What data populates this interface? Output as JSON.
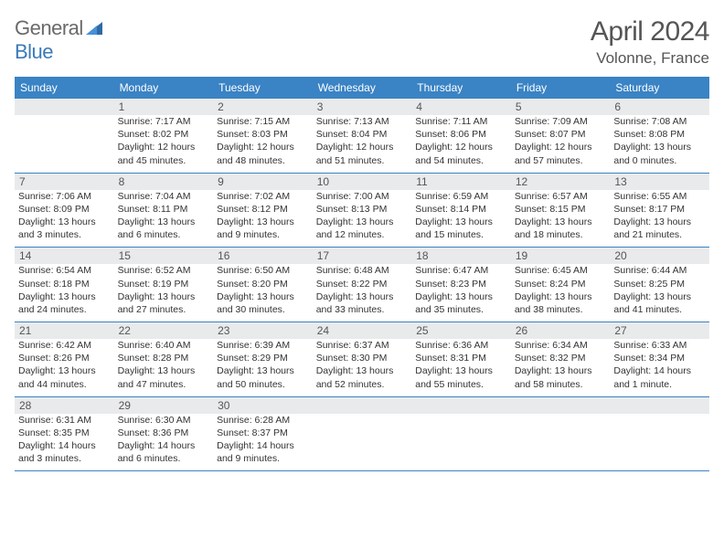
{
  "logo": {
    "general": "General",
    "blue": "Blue"
  },
  "header": {
    "month_title": "April 2024",
    "location": "Volonne, France"
  },
  "colors": {
    "header_bg": "#3a83c4",
    "header_text": "#ffffff",
    "daynum_bg": "#e9eaeb",
    "row_border": "#3a83c4",
    "logo_blue": "#3a7ab8"
  },
  "day_names": [
    "Sunday",
    "Monday",
    "Tuesday",
    "Wednesday",
    "Thursday",
    "Friday",
    "Saturday"
  ],
  "weeks": [
    [
      {
        "n": "",
        "sr": "",
        "ss": "",
        "dl": ""
      },
      {
        "n": "1",
        "sr": "Sunrise: 7:17 AM",
        "ss": "Sunset: 8:02 PM",
        "dl": "Daylight: 12 hours and 45 minutes."
      },
      {
        "n": "2",
        "sr": "Sunrise: 7:15 AM",
        "ss": "Sunset: 8:03 PM",
        "dl": "Daylight: 12 hours and 48 minutes."
      },
      {
        "n": "3",
        "sr": "Sunrise: 7:13 AM",
        "ss": "Sunset: 8:04 PM",
        "dl": "Daylight: 12 hours and 51 minutes."
      },
      {
        "n": "4",
        "sr": "Sunrise: 7:11 AM",
        "ss": "Sunset: 8:06 PM",
        "dl": "Daylight: 12 hours and 54 minutes."
      },
      {
        "n": "5",
        "sr": "Sunrise: 7:09 AM",
        "ss": "Sunset: 8:07 PM",
        "dl": "Daylight: 12 hours and 57 minutes."
      },
      {
        "n": "6",
        "sr": "Sunrise: 7:08 AM",
        "ss": "Sunset: 8:08 PM",
        "dl": "Daylight: 13 hours and 0 minutes."
      }
    ],
    [
      {
        "n": "7",
        "sr": "Sunrise: 7:06 AM",
        "ss": "Sunset: 8:09 PM",
        "dl": "Daylight: 13 hours and 3 minutes."
      },
      {
        "n": "8",
        "sr": "Sunrise: 7:04 AM",
        "ss": "Sunset: 8:11 PM",
        "dl": "Daylight: 13 hours and 6 minutes."
      },
      {
        "n": "9",
        "sr": "Sunrise: 7:02 AM",
        "ss": "Sunset: 8:12 PM",
        "dl": "Daylight: 13 hours and 9 minutes."
      },
      {
        "n": "10",
        "sr": "Sunrise: 7:00 AM",
        "ss": "Sunset: 8:13 PM",
        "dl": "Daylight: 13 hours and 12 minutes."
      },
      {
        "n": "11",
        "sr": "Sunrise: 6:59 AM",
        "ss": "Sunset: 8:14 PM",
        "dl": "Daylight: 13 hours and 15 minutes."
      },
      {
        "n": "12",
        "sr": "Sunrise: 6:57 AM",
        "ss": "Sunset: 8:15 PM",
        "dl": "Daylight: 13 hours and 18 minutes."
      },
      {
        "n": "13",
        "sr": "Sunrise: 6:55 AM",
        "ss": "Sunset: 8:17 PM",
        "dl": "Daylight: 13 hours and 21 minutes."
      }
    ],
    [
      {
        "n": "14",
        "sr": "Sunrise: 6:54 AM",
        "ss": "Sunset: 8:18 PM",
        "dl": "Daylight: 13 hours and 24 minutes."
      },
      {
        "n": "15",
        "sr": "Sunrise: 6:52 AM",
        "ss": "Sunset: 8:19 PM",
        "dl": "Daylight: 13 hours and 27 minutes."
      },
      {
        "n": "16",
        "sr": "Sunrise: 6:50 AM",
        "ss": "Sunset: 8:20 PM",
        "dl": "Daylight: 13 hours and 30 minutes."
      },
      {
        "n": "17",
        "sr": "Sunrise: 6:48 AM",
        "ss": "Sunset: 8:22 PM",
        "dl": "Daylight: 13 hours and 33 minutes."
      },
      {
        "n": "18",
        "sr": "Sunrise: 6:47 AM",
        "ss": "Sunset: 8:23 PM",
        "dl": "Daylight: 13 hours and 35 minutes."
      },
      {
        "n": "19",
        "sr": "Sunrise: 6:45 AM",
        "ss": "Sunset: 8:24 PM",
        "dl": "Daylight: 13 hours and 38 minutes."
      },
      {
        "n": "20",
        "sr": "Sunrise: 6:44 AM",
        "ss": "Sunset: 8:25 PM",
        "dl": "Daylight: 13 hours and 41 minutes."
      }
    ],
    [
      {
        "n": "21",
        "sr": "Sunrise: 6:42 AM",
        "ss": "Sunset: 8:26 PM",
        "dl": "Daylight: 13 hours and 44 minutes."
      },
      {
        "n": "22",
        "sr": "Sunrise: 6:40 AM",
        "ss": "Sunset: 8:28 PM",
        "dl": "Daylight: 13 hours and 47 minutes."
      },
      {
        "n": "23",
        "sr": "Sunrise: 6:39 AM",
        "ss": "Sunset: 8:29 PM",
        "dl": "Daylight: 13 hours and 50 minutes."
      },
      {
        "n": "24",
        "sr": "Sunrise: 6:37 AM",
        "ss": "Sunset: 8:30 PM",
        "dl": "Daylight: 13 hours and 52 minutes."
      },
      {
        "n": "25",
        "sr": "Sunrise: 6:36 AM",
        "ss": "Sunset: 8:31 PM",
        "dl": "Daylight: 13 hours and 55 minutes."
      },
      {
        "n": "26",
        "sr": "Sunrise: 6:34 AM",
        "ss": "Sunset: 8:32 PM",
        "dl": "Daylight: 13 hours and 58 minutes."
      },
      {
        "n": "27",
        "sr": "Sunrise: 6:33 AM",
        "ss": "Sunset: 8:34 PM",
        "dl": "Daylight: 14 hours and 1 minute."
      }
    ],
    [
      {
        "n": "28",
        "sr": "Sunrise: 6:31 AM",
        "ss": "Sunset: 8:35 PM",
        "dl": "Daylight: 14 hours and 3 minutes."
      },
      {
        "n": "29",
        "sr": "Sunrise: 6:30 AM",
        "ss": "Sunset: 8:36 PM",
        "dl": "Daylight: 14 hours and 6 minutes."
      },
      {
        "n": "30",
        "sr": "Sunrise: 6:28 AM",
        "ss": "Sunset: 8:37 PM",
        "dl": "Daylight: 14 hours and 9 minutes."
      },
      {
        "n": "",
        "sr": "",
        "ss": "",
        "dl": ""
      },
      {
        "n": "",
        "sr": "",
        "ss": "",
        "dl": ""
      },
      {
        "n": "",
        "sr": "",
        "ss": "",
        "dl": ""
      },
      {
        "n": "",
        "sr": "",
        "ss": "",
        "dl": ""
      }
    ]
  ]
}
